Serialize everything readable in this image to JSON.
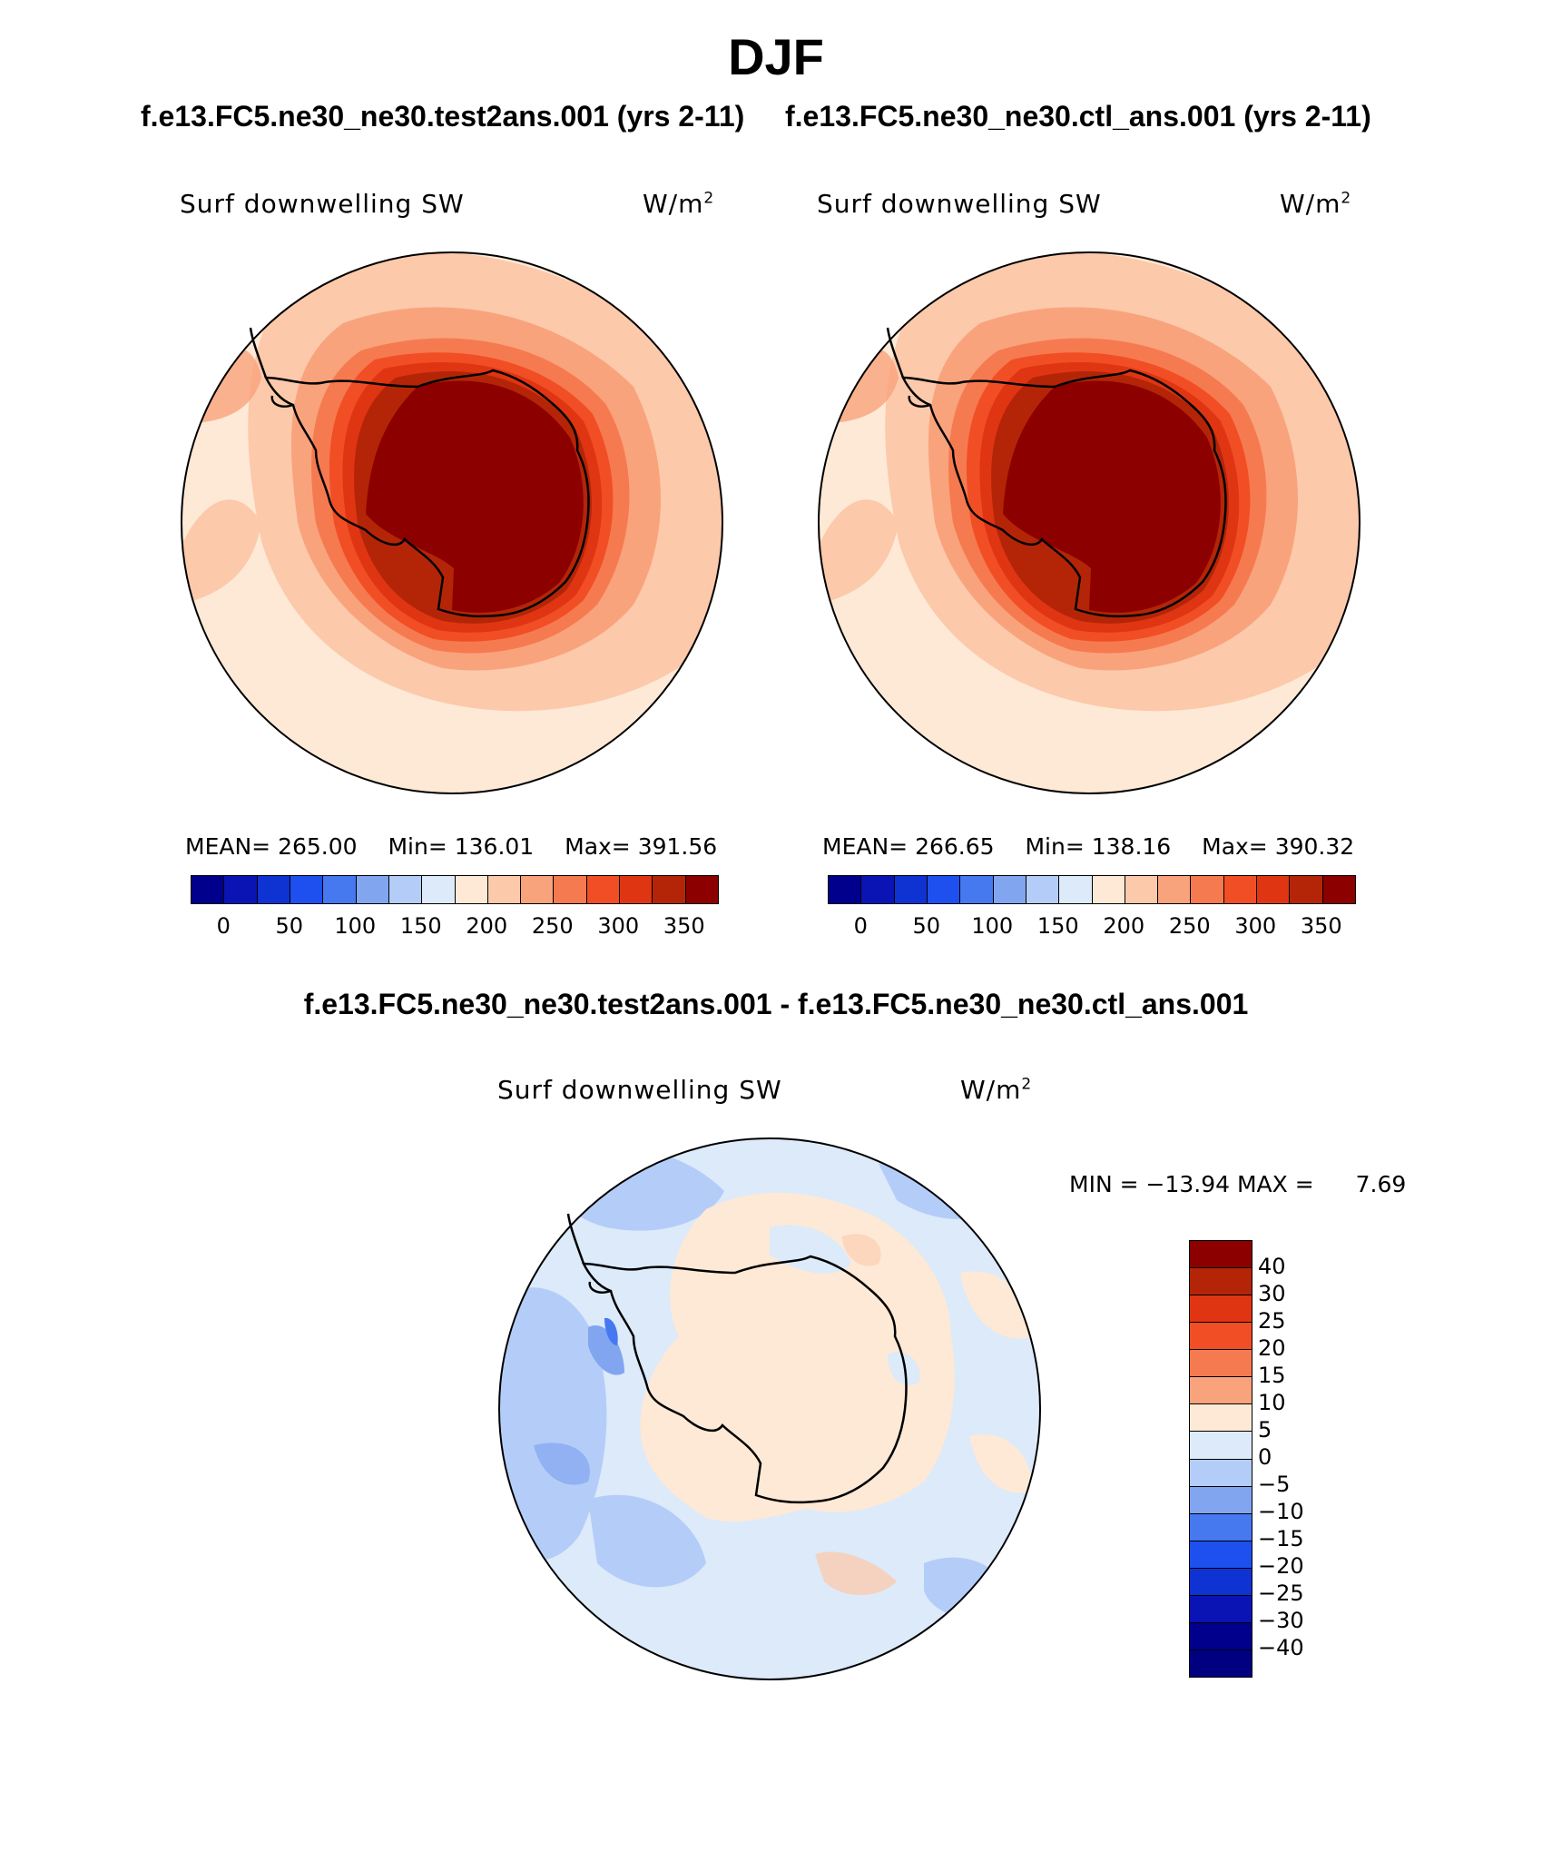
{
  "header": {
    "season": "DJF",
    "test_title": "f.e13.FC5.ne30_ne30.test2ans.001 (yrs 2-11)",
    "ctl_title": "f.e13.FC5.ne30_ne30.ctl_ans.001 (yrs 2-11)",
    "diff_title": "f.e13.FC5.ne30_ne30.test2ans.001 - f.e13.FC5.ne30_ne30.ctl_ans.001"
  },
  "panels": {
    "test": {
      "variable": "Surf downwelling SW",
      "units_base": "W/m",
      "units_exp": "2",
      "stats": {
        "mean_label": "MEAN=",
        "mean": "265.00",
        "min_label": "Min=",
        "min": "136.01",
        "max_label": "Max=",
        "max": "391.56"
      }
    },
    "ctl": {
      "variable": "Surf downwelling SW",
      "units_base": "W/m",
      "units_exp": "2",
      "stats": {
        "mean_label": "MEAN=",
        "mean": "266.65",
        "min_label": "Min=",
        "min": "138.16",
        "max_label": "Max=",
        "max": "390.32"
      }
    },
    "diff": {
      "variable": "Surf downwelling SW",
      "units_base": "W/m",
      "units_exp": "2",
      "stats": {
        "min_label": "MIN =",
        "min": "−13.94",
        "max_label": "MAX =",
        "max": "7.69"
      }
    }
  },
  "colorbars": {
    "abs": {
      "colors": [
        "#00008c",
        "#0a14b4",
        "#0f32d2",
        "#1e50f0",
        "#4678f0",
        "#82a5f0",
        "#b4cdf8",
        "#dceafa",
        "#fde9d6",
        "#fcc9ab",
        "#f9a37c",
        "#f67a50",
        "#f24e26",
        "#e03513",
        "#b42508",
        "#8c0000"
      ],
      "labels": [
        "0",
        "50",
        "100",
        "150",
        "200",
        "250",
        "300",
        "350"
      ]
    },
    "diff": {
      "colors_top_to_bottom": [
        "#8c0000",
        "#b42508",
        "#e03513",
        "#f24e26",
        "#f67a50",
        "#f9a37c",
        "#fde9d6",
        "#dceafa",
        "#b4cdf8",
        "#82a5f0",
        "#4678f0",
        "#1e50f0",
        "#0f32d2",
        "#0a14b4",
        "#00008c",
        "#000080"
      ],
      "labels": [
        "40",
        "30",
        "25",
        "20",
        "15",
        "10",
        "5",
        "0",
        "−5",
        "−10",
        "−15",
        "−20",
        "−25",
        "−30",
        "−40"
      ]
    }
  }
}
